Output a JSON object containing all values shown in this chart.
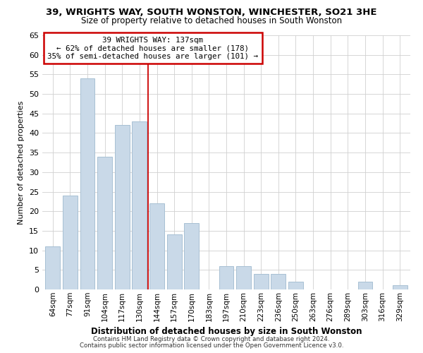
{
  "title1": "39, WRIGHTS WAY, SOUTH WONSTON, WINCHESTER, SO21 3HE",
  "title2": "Size of property relative to detached houses in South Wonston",
  "xlabel": "Distribution of detached houses by size in South Wonston",
  "ylabel": "Number of detached properties",
  "bar_labels": [
    "64sqm",
    "77sqm",
    "91sqm",
    "104sqm",
    "117sqm",
    "130sqm",
    "144sqm",
    "157sqm",
    "170sqm",
    "183sqm",
    "197sqm",
    "210sqm",
    "223sqm",
    "236sqm",
    "250sqm",
    "263sqm",
    "276sqm",
    "289sqm",
    "303sqm",
    "316sqm",
    "329sqm"
  ],
  "bar_values": [
    11,
    24,
    54,
    34,
    42,
    43,
    22,
    14,
    17,
    0,
    6,
    6,
    4,
    4,
    2,
    0,
    0,
    0,
    2,
    0,
    1
  ],
  "bar_color": "#c9d9e8",
  "bar_edgecolor": "#a8c0d4",
  "ylim": [
    0,
    65
  ],
  "yticks": [
    0,
    5,
    10,
    15,
    20,
    25,
    30,
    35,
    40,
    45,
    50,
    55,
    60,
    65
  ],
  "vline_x": 5.5,
  "vline_color": "#cc0000",
  "annotation_text": "39 WRIGHTS WAY: 137sqm\n← 62% of detached houses are smaller (178)\n35% of semi-detached houses are larger (101) →",
  "annotation_box_edgecolor": "#cc0000",
  "footer1": "Contains HM Land Registry data © Crown copyright and database right 2024.",
  "footer2": "Contains public sector information licensed under the Open Government Licence v3.0.",
  "background_color": "#ffffff",
  "grid_color": "#d0d0d0"
}
